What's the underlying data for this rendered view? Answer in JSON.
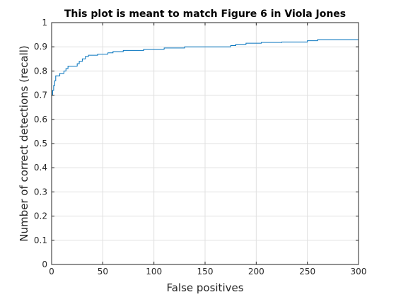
{
  "chart_data": {
    "type": "line",
    "title": "This plot is meant to match Figure 6 in Viola Jones",
    "xlabel": "False positives",
    "ylabel": "Number of correct detections (recall)",
    "xlim": [
      0,
      300
    ],
    "ylim": [
      0,
      1
    ],
    "xticks": [
      0,
      50,
      100,
      150,
      200,
      250,
      300
    ],
    "yticks": [
      0,
      0.1,
      0.2,
      0.3,
      0.4,
      0.5,
      0.6,
      0.7,
      0.8,
      0.9,
      1
    ],
    "xtick_labels": [
      "0",
      "50",
      "100",
      "150",
      "200",
      "250",
      "300"
    ],
    "ytick_labels": [
      "0",
      "0.1",
      "0.2",
      "0.3",
      "0.4",
      "0.5",
      "0.6",
      "0.7",
      "0.8",
      "0.9",
      "1"
    ],
    "grid": true,
    "line_color": "#0072BD",
    "series": [
      {
        "x": [
          0,
          0,
          0,
          1,
          1,
          2,
          2,
          3,
          3,
          4,
          4,
          8,
          8,
          12,
          12,
          14,
          14,
          16,
          16,
          25,
          25,
          27,
          27,
          30,
          30,
          33,
          33,
          36,
          36,
          45,
          45,
          55,
          55,
          60,
          60,
          70,
          70,
          90,
          90,
          110,
          110,
          130,
          130,
          175,
          175,
          180,
          180,
          190,
          190,
          205,
          205,
          225,
          225,
          250,
          250,
          260,
          260,
          300
        ],
        "y": [
          0,
          0.7,
          0.7,
          0.7,
          0.72,
          0.72,
          0.74,
          0.74,
          0.76,
          0.76,
          0.78,
          0.78,
          0.79,
          0.79,
          0.8,
          0.8,
          0.81,
          0.81,
          0.82,
          0.82,
          0.83,
          0.83,
          0.84,
          0.84,
          0.85,
          0.85,
          0.86,
          0.86,
          0.865,
          0.865,
          0.87,
          0.87,
          0.875,
          0.875,
          0.88,
          0.88,
          0.885,
          0.885,
          0.89,
          0.89,
          0.895,
          0.895,
          0.9,
          0.9,
          0.905,
          0.905,
          0.91,
          0.91,
          0.915,
          0.915,
          0.918,
          0.918,
          0.92,
          0.92,
          0.925,
          0.925,
          0.93,
          0.93
        ]
      }
    ]
  }
}
